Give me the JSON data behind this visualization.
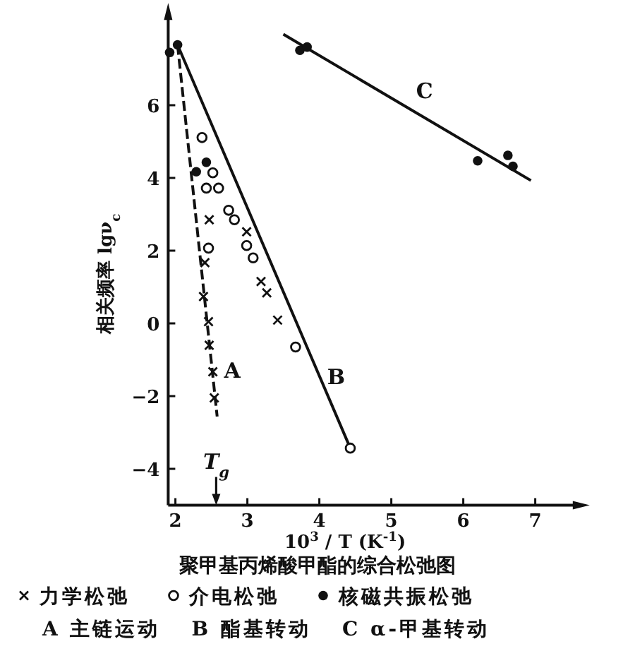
{
  "chart_data": {
    "type": "line",
    "title": "聚甲基丙烯酸甲酯的综合松弛图",
    "xlabel": "10$^{3}$ / T (K$^{-1}$)",
    "ylabel": "相关频率 lgν$_{c}$",
    "xlim": [
      1.9,
      7.6
    ],
    "ylim": [
      -5,
      8.5
    ],
    "xticks": [
      2,
      3,
      4,
      5,
      6,
      7
    ],
    "yticks": [
      -4,
      -2,
      0,
      2,
      4,
      6
    ],
    "legend": "bottom",
    "grid": false,
    "series": [
      {
        "name": "A",
        "color": "#111111",
        "line_style": "dashed",
        "x": [
          2.03,
          2.58
        ],
        "values": [
          7.66,
          -2.56
        ]
      },
      {
        "name": "B",
        "color": "#111111",
        "line_style": "solid",
        "x": [
          2.03,
          4.43
        ],
        "values": [
          7.66,
          -3.43
        ]
      },
      {
        "name": "C",
        "color": "#111111",
        "line_style": "solid",
        "x": [
          3.5,
          6.94
        ],
        "values": [
          7.95,
          3.93
        ]
      },
      {
        "name": "力学松弛",
        "type": "scatter",
        "marker": "cross",
        "color": "#111111",
        "x": [
          2.47,
          2.41,
          2.39,
          2.46,
          2.47,
          2.52,
          2.54,
          2.99,
          3.19,
          3.27,
          3.42
        ],
        "values": [
          2.85,
          1.67,
          0.74,
          0.05,
          -0.6,
          -1.33,
          -2.05,
          2.52,
          1.15,
          0.84,
          0.09
        ]
      },
      {
        "name": "介电松弛",
        "type": "scatter",
        "marker": "circle",
        "color": "#111111",
        "x": [
          2.37,
          2.52,
          2.43,
          2.6,
          2.74,
          2.82,
          2.99,
          3.08,
          3.67,
          4.43,
          2.46
        ],
        "values": [
          5.11,
          4.14,
          3.72,
          3.72,
          3.11,
          2.85,
          2.14,
          1.8,
          -0.65,
          -3.43,
          2.07
        ]
      },
      {
        "name": "核磁共振松弛",
        "type": "scatter",
        "marker": "dot",
        "color": "#111111",
        "x": [
          1.92,
          2.03,
          2.29,
          2.43,
          3.73,
          3.83,
          6.2,
          6.62,
          6.69
        ],
        "values": [
          7.45,
          7.66,
          4.17,
          4.43,
          7.51,
          7.6,
          4.47,
          4.62,
          4.32
        ]
      }
    ],
    "annotations": [
      "T$_{g}$",
      "A 主链运动",
      "B 酯基转动",
      "C α-甲基转动"
    ]
  }
}
